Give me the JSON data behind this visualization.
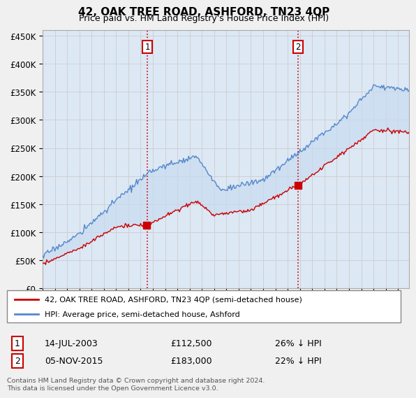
{
  "title": "42, OAK TREE ROAD, ASHFORD, TN23 4QP",
  "subtitle": "Price paid vs. HM Land Registry's House Price Index (HPI)",
  "ylabel_ticks": [
    "£0",
    "£50K",
    "£100K",
    "£150K",
    "£200K",
    "£250K",
    "£300K",
    "£350K",
    "£400K",
    "£450K"
  ],
  "ytick_vals": [
    0,
    50000,
    100000,
    150000,
    200000,
    250000,
    300000,
    350000,
    400000,
    450000
  ],
  "ylim": [
    0,
    460000
  ],
  "xlim_start": 1995.0,
  "xlim_end": 2024.9,
  "grid_color": "#cccccc",
  "background_color": "#f0f0f0",
  "plot_bg_color": "#dde8f5",
  "hpi_color": "#5588cc",
  "price_color": "#cc0000",
  "vline_color": "#cc0000",
  "transaction1_date": "14-JUL-2003",
  "transaction1_price": 112500,
  "transaction1_hpi_diff": "26% ↓ HPI",
  "transaction1_year": 2003.54,
  "transaction2_date": "05-NOV-2015",
  "transaction2_price": 183000,
  "transaction2_hpi_diff": "22% ↓ HPI",
  "transaction2_year": 2015.84,
  "legend_label1": "42, OAK TREE ROAD, ASHFORD, TN23 4QP (semi-detached house)",
  "legend_label2": "HPI: Average price, semi-detached house, Ashford",
  "footer": "Contains HM Land Registry data © Crown copyright and database right 2024.\nThis data is licensed under the Open Government Licence v3.0."
}
